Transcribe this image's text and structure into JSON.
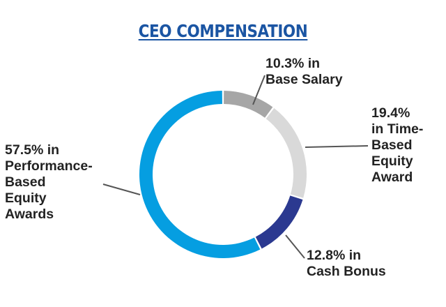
{
  "chart_data": {
    "type": "pie",
    "title": "CEO COMPENSATION",
    "categories": [
      "Base Salary",
      "Time-Based Equity Award",
      "Cash Bonus",
      "Performance-Based Equity Awards"
    ],
    "values": [
      10.3,
      19.4,
      12.8,
      57.5
    ],
    "unit": "%",
    "colors": [
      "#a6a6a6",
      "#d9d9d9",
      "#2b3990",
      "#059ee1"
    ],
    "data_labels": [
      "10.3% in\nBase Salary",
      "19.4%\nin Time-\nBased\nEquity\nAward",
      "12.8% in\nCash Bonus",
      "57.5% in\nPerformance-\nBased\nEquity\nAwards"
    ],
    "leader_color": "#555555"
  }
}
